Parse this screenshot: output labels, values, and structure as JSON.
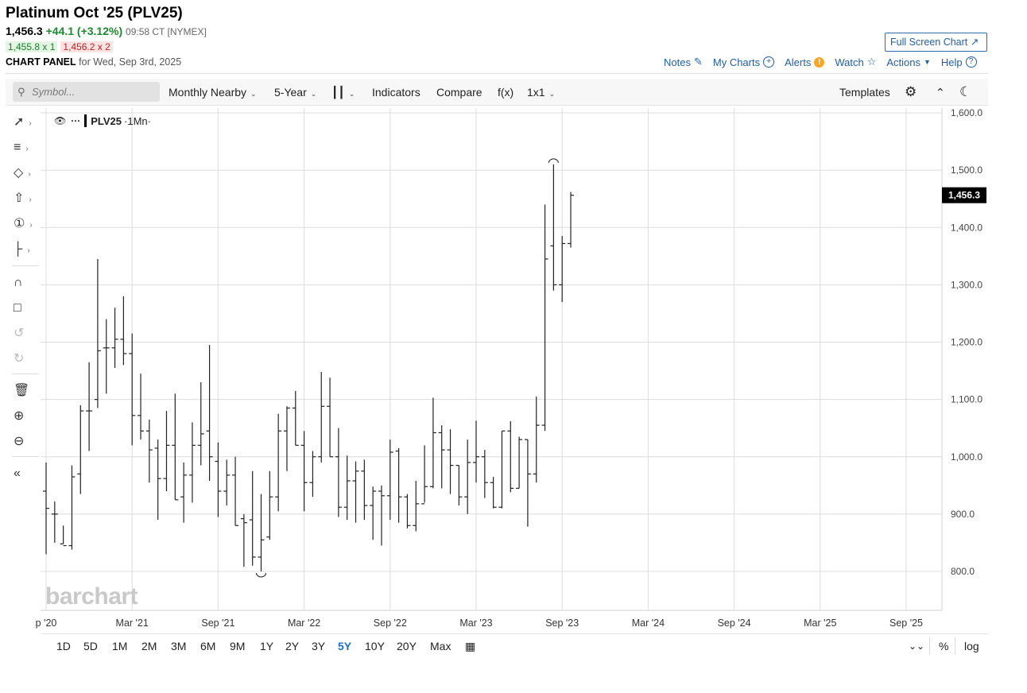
{
  "header": {
    "title": "Platinum Oct '25 (PLV25)",
    "last": "1,456.3",
    "change": "+44.1 (+3.12%)",
    "meta": "09:58 CT [NYMEX]",
    "bid": "1,455.8 x 1",
    "ask": "1,456.2 x 2",
    "panel_label": "CHART PANEL",
    "panel_date": "for Wed, Sep 3rd, 2025"
  },
  "fullscreen_label": "Full Screen Chart",
  "toplinks": {
    "notes": "Notes",
    "mycharts": "My Charts",
    "alerts": "Alerts",
    "watch": "Watch",
    "actions": "Actions",
    "help": "Help"
  },
  "toolbar": {
    "symbol_placeholder": "Symbol...",
    "aggregation": "Monthly Nearby",
    "range": "5-Year",
    "indicators": "Indicators",
    "compare": "Compare",
    "fx": "f(x)",
    "layout": "1x1",
    "templates": "Templates"
  },
  "legend": {
    "symbol": "PLV25",
    "interval": "·1Mn·"
  },
  "logo": "barchart",
  "periods": [
    "1D",
    "5D",
    "1M",
    "2M",
    "3M",
    "6M",
    "9M",
    "1Y",
    "2Y",
    "3Y",
    "5Y",
    "10Y",
    "20Y",
    "Max"
  ],
  "active_period": "5Y",
  "bottom_right": {
    "percent": "%",
    "log": "log"
  },
  "colors": {
    "accent": "#1f5fa6",
    "up": "#1b8a2e",
    "down": "#c41d1d",
    "bar": "#222222"
  },
  "chart_data": {
    "type": "ohlc",
    "title": "",
    "ylim": [
      730,
      1610
    ],
    "y_ticks": [
      "1,600.0",
      "1,500.0",
      "1,400.0",
      "1,300.0",
      "1,200.0",
      "1,100.0",
      "1,000.0",
      "900.0",
      "800.0"
    ],
    "y_tick_values": [
      1600,
      1500,
      1400,
      1300,
      1200,
      1100,
      1000,
      900,
      800
    ],
    "x_ticks": [
      "p '20",
      "Mar '21",
      "Sep '21",
      "Mar '22",
      "Sep '22",
      "Mar '23",
      "Sep '23",
      "Mar '24",
      "Sep '24",
      "Mar '25",
      "Sep '25"
    ],
    "x_tick_index": [
      0,
      10,
      20,
      30,
      40,
      50,
      60,
      70,
      80,
      90,
      100
    ],
    "last_price_label": "1,456.3",
    "last_price": 1456.3,
    "bars": [
      [
        940,
        990,
        830,
        910
      ],
      [
        900,
        922,
        850,
        900
      ],
      [
        848,
        880,
        848,
        845
      ],
      [
        845,
        985,
        838,
        965
      ],
      [
        970,
        1090,
        935,
        1080
      ],
      [
        1080,
        1165,
        1010,
        1080
      ],
      [
        1100,
        1345,
        1085,
        1185
      ],
      [
        1190,
        1240,
        1110,
        1190
      ],
      [
        1190,
        1260,
        1155,
        1205
      ],
      [
        1205,
        1280,
        1160,
        1180
      ],
      [
        1180,
        1215,
        1020,
        1072
      ],
      [
        1072,
        1145,
        1030,
        1045
      ],
      [
        1045,
        1065,
        955,
        1012
      ],
      [
        1015,
        1030,
        890,
        962
      ],
      [
        962,
        1080,
        940,
        1020
      ],
      [
        1020,
        1110,
        925,
        925
      ],
      [
        930,
        990,
        885,
        968
      ],
      [
        968,
        1060,
        920,
        1020
      ],
      [
        1020,
        1130,
        985,
        1040
      ],
      [
        1045,
        1195,
        958,
        1000
      ],
      [
        992,
        1025,
        895,
        940
      ],
      [
        940,
        995,
        915,
        968
      ],
      [
        968,
        1000,
        880,
        880
      ],
      [
        892,
        900,
        808,
        885
      ],
      [
        890,
        975,
        810,
        825
      ],
      [
        825,
        935,
        800,
        855
      ],
      [
        860,
        975,
        855,
        930
      ],
      [
        930,
        1075,
        905,
        1045
      ],
      [
        1045,
        1088,
        975,
        1085
      ],
      [
        1085,
        1115,
        1020,
        1020
      ],
      [
        1020,
        1045,
        905,
        955
      ],
      [
        955,
        1010,
        930,
        1000
      ],
      [
        1000,
        1148,
        990,
        1088
      ],
      [
        1088,
        1138,
        1000,
        1000
      ],
      [
        1000,
        1050,
        895,
        912
      ],
      [
        912,
        1002,
        890,
        958
      ],
      [
        958,
        992,
        885,
        975
      ],
      [
        975,
        995,
        890,
        915
      ],
      [
        915,
        948,
        855,
        940
      ],
      [
        940,
        950,
        845,
        932
      ],
      [
        932,
        1030,
        890,
        1008
      ],
      [
        1010,
        1015,
        885,
        930
      ],
      [
        930,
        935,
        875,
        880
      ],
      [
        880,
        958,
        870,
        918
      ],
      [
        918,
        1020,
        920,
        948
      ],
      [
        948,
        1103,
        945,
        1042
      ],
      [
        1042,
        1055,
        945,
        1012
      ],
      [
        1012,
        1048,
        935,
        985
      ],
      [
        985,
        985,
        915,
        930
      ],
      [
        930,
        1030,
        900,
        990
      ],
      [
        990,
        1063,
        955,
        1000
      ],
      [
        1000,
        1012,
        928,
        955
      ],
      [
        955,
        965,
        910,
        912
      ],
      [
        912,
        1045,
        910,
        1045
      ],
      [
        1045,
        1062,
        938,
        945
      ],
      [
        945,
        1035,
        945,
        1030
      ],
      [
        1030,
        1030,
        878,
        970
      ],
      [
        970,
        1105,
        955,
        1055
      ],
      [
        1055,
        1440,
        1045,
        1345
      ],
      [
        1368,
        1510,
        1290,
        1300
      ],
      [
        1300,
        1385,
        1270,
        1372
      ],
      [
        1372,
        1462,
        1365,
        1456.3
      ]
    ],
    "bar_x_index": [
      0,
      2,
      4,
      6,
      8,
      10,
      12,
      14,
      16,
      18,
      20,
      22,
      24,
      26,
      28,
      30,
      32,
      34,
      36,
      38,
      40,
      42,
      44,
      46,
      48,
      50,
      52,
      54,
      56,
      58,
      60,
      62,
      64,
      66,
      68,
      70,
      72,
      74,
      76,
      78,
      80,
      82,
      84,
      86,
      88,
      90,
      92,
      94,
      96,
      98,
      100,
      102,
      104,
      106,
      108,
      110,
      112,
      114,
      116,
      118,
      120,
      122
    ]
  }
}
